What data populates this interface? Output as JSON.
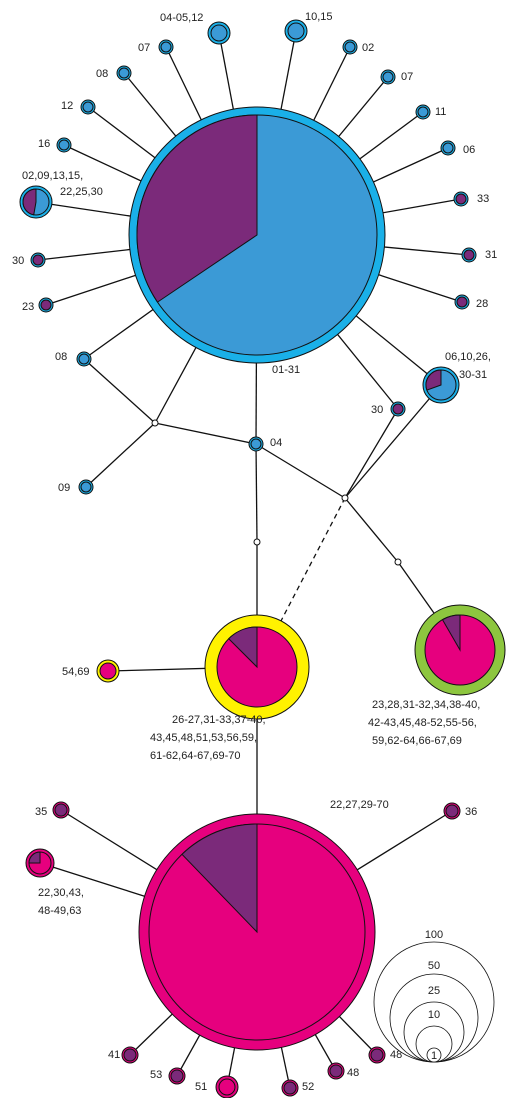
{
  "nodes": [
    {
      "label_lines": [
        "01-31"
      ]
    },
    {
      "label_lines": [
        "04-05,12"
      ]
    },
    {
      "label_lines": [
        "10,15"
      ]
    },
    {
      "label_lines": [
        "02"
      ]
    },
    {
      "label_lines": [
        "07"
      ]
    },
    {
      "label_lines": [
        "11"
      ]
    },
    {
      "label_lines": [
        "06"
      ]
    },
    {
      "label_lines": [
        "33"
      ]
    },
    {
      "label_lines": [
        "31"
      ]
    },
    {
      "label_lines": [
        "28"
      ]
    },
    {
      "label_lines": [
        "07"
      ]
    },
    {
      "label_lines": [
        "08"
      ]
    },
    {
      "label_lines": [
        "12"
      ]
    },
    {
      "label_lines": [
        "16"
      ]
    },
    {
      "label_lines": [
        "02,09,13,15,",
        "22,25,30"
      ]
    },
    {
      "label_lines": [
        "30"
      ]
    },
    {
      "label_lines": [
        "23"
      ]
    },
    {
      "label_lines": [
        "08"
      ]
    },
    {
      "label_lines": [
        "09"
      ]
    },
    {
      "label_lines": [
        "04"
      ]
    },
    {
      "label_lines": [
        "30"
      ]
    },
    {
      "label_lines": [
        "06,10,26,",
        "30-31"
      ]
    },
    {
      "label_lines": [
        "26-27,31-33,37-40,",
        "43,45,48,51,53,56,59,",
        "61-62,64-67,69-70"
      ]
    },
    {
      "label_lines": [
        "54,69"
      ]
    },
    {
      "label_lines": [
        "23,28,31-32,34,38-40,",
        "42-43,45,48-52,55-56,",
        "59,62-64,66-67,69"
      ]
    },
    {
      "label_lines": [
        "22,27,29-70"
      ]
    },
    {
      "label_lines": [
        "35"
      ]
    },
    {
      "label_lines": [
        "36"
      ]
    },
    {
      "label_lines": [
        "22,30,43,",
        "48-49,63"
      ]
    },
    {
      "label_lines": [
        "41"
      ]
    },
    {
      "label_lines": [
        "53"
      ]
    },
    {
      "label_lines": [
        "51"
      ]
    },
    {
      "label_lines": [
        "52"
      ]
    },
    {
      "label_lines": [
        "48"
      ]
    },
    {
      "label_lines": [
        "48"
      ]
    }
  ],
  "legend": {
    "labels": [
      "100",
      "50",
      "25",
      "10",
      "1"
    ]
  }
}
